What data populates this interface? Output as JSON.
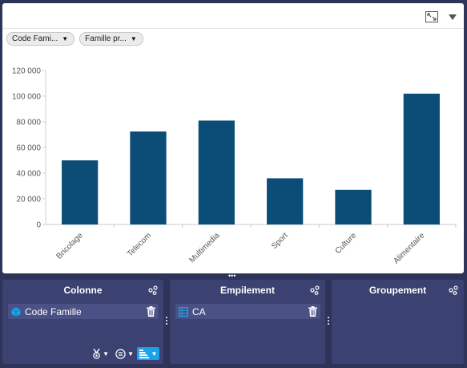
{
  "filters": [
    {
      "label": "Code Fami..."
    },
    {
      "label": "Famille pr..."
    }
  ],
  "icons": {
    "expand": "expand-icon",
    "menu": "dropdown-caret-icon",
    "settings": "settings-icon",
    "delete": "trash-icon",
    "dimension": "cube-icon",
    "measure": "measure-icon",
    "ranking": "medal-icon",
    "filter": "filter-icon",
    "sort": "sort-bars-icon"
  },
  "colors": {
    "bar": "#0b4d77",
    "background": "#2e3459",
    "zone": "#3b4170",
    "zone_item": "#4a5185",
    "dimension_icon": "#1aa3e8",
    "sort_button": "#1aa3e8"
  },
  "chart_data": {
    "type": "bar",
    "title": "",
    "xlabel": "",
    "ylabel": "",
    "categories": [
      "Bricolage",
      "Telecom",
      "Multimedia",
      "Sport",
      "Culture",
      "Alimentaire"
    ],
    "values": [
      50000,
      72500,
      81000,
      36000,
      27000,
      102000
    ],
    "ylim": [
      0,
      120000
    ],
    "yticks": [
      "0",
      "20 000",
      "40 000",
      "60 000",
      "80 000",
      "100 000",
      "120 000"
    ],
    "grid": false,
    "legend": "none"
  },
  "zones": {
    "colonne": {
      "title": "Colonne",
      "item": "Code Famille"
    },
    "empilement": {
      "title": "Empilement",
      "item": "CA"
    },
    "groupement": {
      "title": "Groupement"
    }
  }
}
